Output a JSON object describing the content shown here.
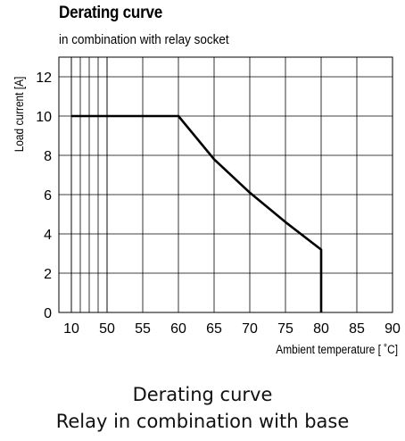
{
  "chart_data": {
    "type": "line",
    "title": "Derating curve",
    "subtitle": "in combination with relay socket",
    "xlabel": "Ambient temperature [ ˚C]",
    "ylabel": "Load current [A]",
    "xticks": [
      10,
      50,
      55,
      60,
      65,
      70,
      75,
      80,
      85,
      90
    ],
    "yticks": [
      0,
      2,
      4,
      6,
      8,
      10,
      12
    ],
    "ylim": [
      0,
      13
    ],
    "grid": true,
    "series": [
      {
        "x": [
          10,
          60,
          65,
          70,
          75,
          80,
          80
        ],
        "y": [
          10,
          10,
          7.8,
          6.1,
          4.6,
          3.2,
          0
        ]
      }
    ],
    "caption": [
      "Derating curve",
      "Relay in combination with base"
    ]
  }
}
